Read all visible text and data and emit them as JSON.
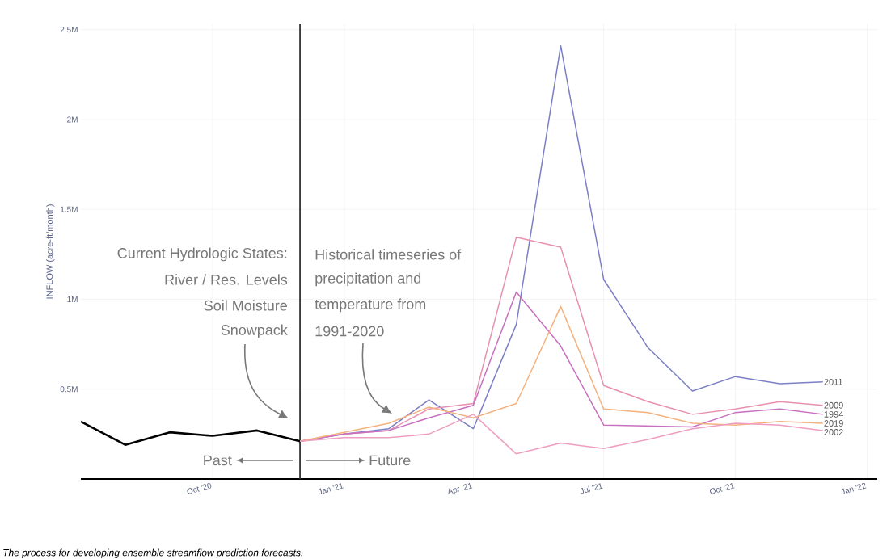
{
  "chart_data": {
    "type": "line",
    "ylabel": "INFLOW (acre-ft/month)",
    "xlim": [
      "2020-07",
      "2022-01-08"
    ],
    "ylim": [
      0,
      2530000
    ],
    "xticks": [
      {
        "value": "2020-10",
        "label": "Oct '20"
      },
      {
        "value": "2021-01",
        "label": "Jan '21"
      },
      {
        "value": "2021-04",
        "label": "Apr '21"
      },
      {
        "value": "2021-07",
        "label": "Jul '21"
      },
      {
        "value": "2021-10",
        "label": "Oct '21"
      },
      {
        "value": "2022-01",
        "label": "Jan '22"
      }
    ],
    "yticks": [
      {
        "value": 500000,
        "label": "0.5M"
      },
      {
        "value": 1000000,
        "label": "1M"
      },
      {
        "value": 1500000,
        "label": "1.5M"
      },
      {
        "value": 2000000,
        "label": "2M"
      },
      {
        "value": 2500000,
        "label": "2.5M"
      }
    ],
    "grid": true,
    "legend": false,
    "series": [
      {
        "color": "#000000",
        "x": [
          "2020-07",
          "2020-08",
          "2020-09",
          "2020-10",
          "2020-11",
          "2020-12"
        ],
        "values": [
          320000,
          190000,
          260000,
          240000,
          270000,
          210000
        ]
      },
      {
        "name": "2011",
        "color": "#7b7fc4",
        "x": [
          "2020-12",
          "2021-01",
          "2021-02",
          "2021-03",
          "2021-04",
          "2021-05",
          "2021-06",
          "2021-07",
          "2021-08",
          "2021-09",
          "2021-10",
          "2021-11",
          "2021-12"
        ],
        "values": [
          210000,
          250000,
          280000,
          440000,
          280000,
          860000,
          2410000,
          1110000,
          730000,
          490000,
          570000,
          530000,
          540000
        ]
      },
      {
        "name": "2009",
        "color": "#e890b0",
        "x": [
          "2020-12",
          "2021-01",
          "2021-02",
          "2021-03",
          "2021-04",
          "2021-05",
          "2021-06",
          "2021-07",
          "2021-08",
          "2021-09",
          "2021-10",
          "2021-11",
          "2021-12"
        ],
        "values": [
          210000,
          250000,
          270000,
          390000,
          420000,
          1345000,
          1290000,
          520000,
          430000,
          360000,
          390000,
          430000,
          410000
        ]
      },
      {
        "name": "1994",
        "color": "#c86fc0",
        "x": [
          "2020-12",
          "2021-01",
          "2021-02",
          "2021-03",
          "2021-04",
          "2021-05",
          "2021-06",
          "2021-07",
          "2021-08",
          "2021-09",
          "2021-10",
          "2021-11",
          "2021-12"
        ],
        "values": [
          210000,
          250000,
          270000,
          340000,
          410000,
          1040000,
          740000,
          300000,
          295000,
          290000,
          370000,
          390000,
          360000
        ]
      },
      {
        "name": "2019",
        "color": "#f4b27e",
        "x": [
          "2020-12",
          "2021-01",
          "2021-02",
          "2021-03",
          "2021-04",
          "2021-05",
          "2021-06",
          "2021-07",
          "2021-08",
          "2021-09",
          "2021-10",
          "2021-11",
          "2021-12"
        ],
        "values": [
          210000,
          260000,
          310000,
          400000,
          340000,
          420000,
          960000,
          390000,
          370000,
          310000,
          300000,
          320000,
          310000
        ]
      },
      {
        "name": "2002",
        "color": "#ee9ec0",
        "x": [
          "2020-12",
          "2021-01",
          "2021-02",
          "2021-03",
          "2021-04",
          "2021-05",
          "2021-06",
          "2021-07",
          "2021-08",
          "2021-09",
          "2021-10",
          "2021-11",
          "2021-12"
        ],
        "values": [
          210000,
          230000,
          230000,
          250000,
          360000,
          140000,
          200000,
          170000,
          220000,
          280000,
          310000,
          300000,
          270000
        ]
      }
    ],
    "ref_lines": [
      {
        "axis": "x",
        "value": "2020-12",
        "color": "#333333"
      }
    ],
    "annotations": [
      "Current Hydrologic States:",
      "River / Res. Levels",
      "Soil Moisture",
      "Snowpack",
      "Historical timeseries of",
      "precipitation and",
      "temperature from",
      "1991-2020",
      "Past",
      "Future",
      "The process for developing ensemble streamflow prediction forecasts."
    ]
  }
}
